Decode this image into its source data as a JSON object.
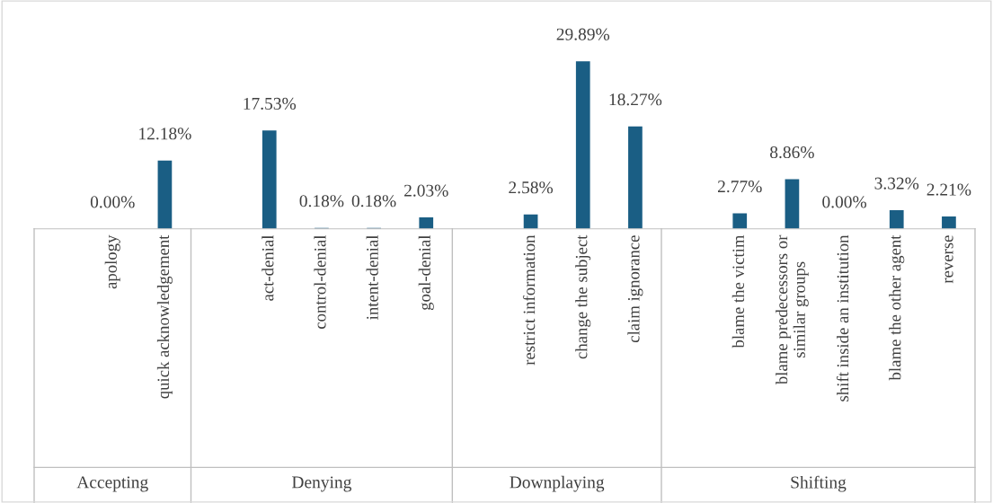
{
  "chart_data": {
    "type": "bar",
    "categories": [
      null,
      "apology",
      "quick acknowledgement",
      null,
      "act-denial",
      "control-denial",
      "intent-denial",
      "goal-denial",
      null,
      "restrict information",
      "change the subject",
      "claim ignorance",
      null,
      "blame the victim",
      "blame predecessors or\nsimilar groups",
      "shift inside an institution",
      "blame the other agent",
      "reverse"
    ],
    "values": [
      null,
      0.0,
      12.18,
      null,
      17.53,
      0.18,
      0.18,
      2.03,
      null,
      2.58,
      29.89,
      18.27,
      null,
      2.77,
      8.86,
      0.0,
      3.32,
      2.21
    ],
    "value_labels": [
      null,
      "0.00%",
      "12.18%",
      null,
      "17.53%",
      "0.18%",
      "0.18%",
      "2.03%",
      null,
      "2.58%",
      "29.89%",
      "18.27%",
      null,
      "2.77%",
      "8.86%",
      "0.00%",
      "3.32%",
      "2.21%"
    ],
    "color": "#1a5e84",
    "annotations": [
      "Accepting",
      "Denying",
      "Downplaying",
      "Shifting"
    ]
  }
}
